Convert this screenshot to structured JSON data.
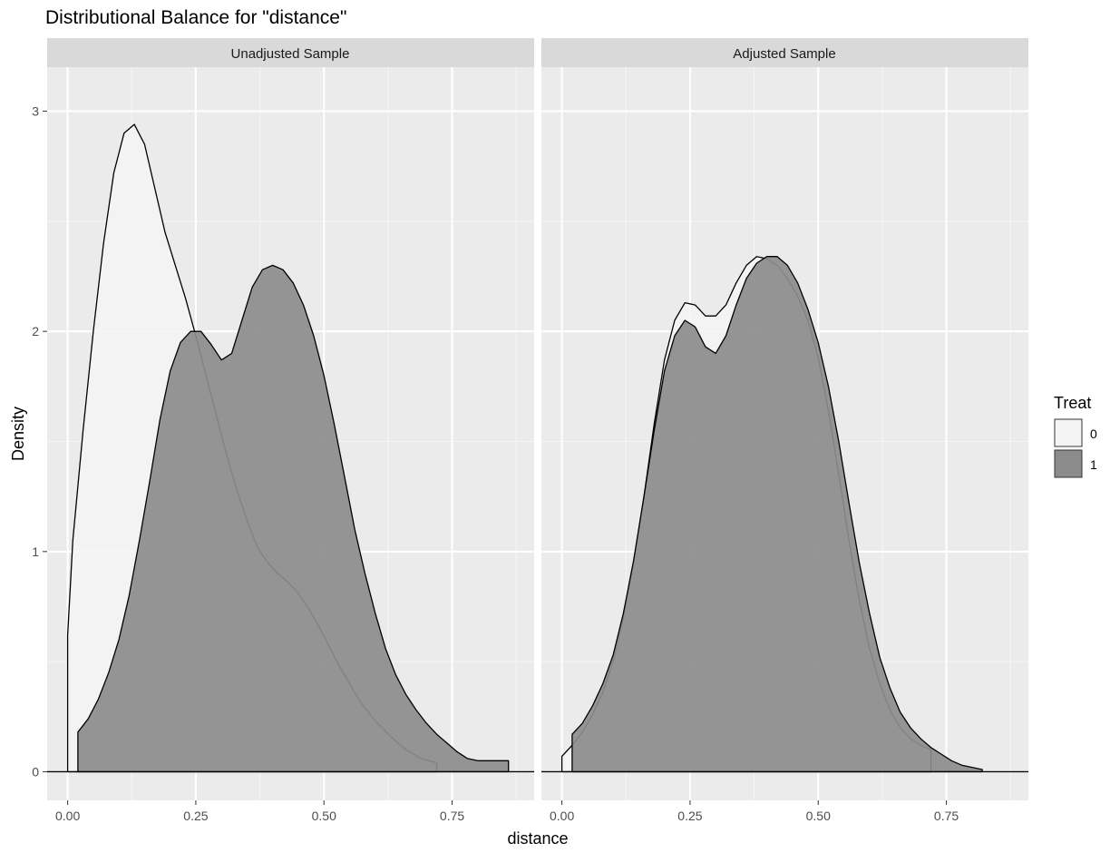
{
  "chart_data": {
    "type": "area",
    "title": "Distributional Balance for \"distance\"",
    "xlabel": "distance",
    "ylabel": "Density",
    "xlim": [
      -0.04,
      0.91
    ],
    "ylim": [
      -0.13,
      3.2
    ],
    "x_ticks": [
      0.0,
      0.25,
      0.5,
      0.75
    ],
    "x_tick_labels": [
      "0.00",
      "0.25",
      "0.50",
      "0.75"
    ],
    "y_ticks": [
      0,
      1,
      2,
      3
    ],
    "y_tick_labels": [
      "0",
      "1",
      "2",
      "3"
    ],
    "grid": true,
    "legend": {
      "title": "Treat",
      "placement": "right",
      "entries": [
        {
          "label": "0",
          "color": "#f4f4f4"
        },
        {
          "label": "1",
          "color": "#8c8c8c"
        }
      ]
    },
    "panels": [
      {
        "strip": "Unadjusted Sample",
        "series": [
          {
            "name": "0",
            "color": "#f4f4f4",
            "x": [
              0.0,
              0.01,
              0.03,
              0.05,
              0.07,
              0.09,
              0.11,
              0.13,
              0.15,
              0.17,
              0.19,
              0.21,
              0.23,
              0.25,
              0.27,
              0.29,
              0.31,
              0.33,
              0.35,
              0.37,
              0.39,
              0.41,
              0.43,
              0.45,
              0.47,
              0.49,
              0.51,
              0.53,
              0.55,
              0.57,
              0.6,
              0.63,
              0.66,
              0.69,
              0.72
            ],
            "y": [
              0.62,
              1.05,
              1.55,
              2.0,
              2.4,
              2.72,
              2.9,
              2.94,
              2.85,
              2.65,
              2.45,
              2.3,
              2.15,
              1.98,
              1.8,
              1.62,
              1.44,
              1.28,
              1.14,
              1.02,
              0.95,
              0.9,
              0.86,
              0.81,
              0.74,
              0.66,
              0.57,
              0.48,
              0.4,
              0.32,
              0.23,
              0.16,
              0.1,
              0.06,
              0.04
            ]
          },
          {
            "name": "1",
            "color": "#8c8c8c",
            "x": [
              0.02,
              0.04,
              0.06,
              0.08,
              0.1,
              0.12,
              0.14,
              0.16,
              0.18,
              0.2,
              0.22,
              0.24,
              0.26,
              0.28,
              0.3,
              0.32,
              0.34,
              0.36,
              0.38,
              0.4,
              0.42,
              0.44,
              0.46,
              0.48,
              0.5,
              0.52,
              0.54,
              0.56,
              0.58,
              0.6,
              0.62,
              0.64,
              0.66,
              0.68,
              0.7,
              0.72,
              0.74,
              0.76,
              0.78,
              0.8,
              0.82,
              0.84,
              0.86
            ],
            "y": [
              0.18,
              0.24,
              0.33,
              0.45,
              0.6,
              0.8,
              1.05,
              1.32,
              1.6,
              1.82,
              1.95,
              2.0,
              2.0,
              1.94,
              1.87,
              1.9,
              2.05,
              2.2,
              2.28,
              2.3,
              2.28,
              2.22,
              2.12,
              1.98,
              1.8,
              1.58,
              1.34,
              1.1,
              0.9,
              0.72,
              0.56,
              0.44,
              0.35,
              0.28,
              0.22,
              0.17,
              0.13,
              0.09,
              0.06,
              0.05,
              0.05,
              0.05,
              0.05
            ]
          }
        ]
      },
      {
        "strip": "Adjusted Sample",
        "series": [
          {
            "name": "0",
            "color": "#f4f4f4",
            "x": [
              0.0,
              0.02,
              0.04,
              0.06,
              0.08,
              0.1,
              0.12,
              0.14,
              0.16,
              0.18,
              0.2,
              0.22,
              0.24,
              0.26,
              0.28,
              0.3,
              0.32,
              0.34,
              0.36,
              0.38,
              0.4,
              0.42,
              0.44,
              0.46,
              0.48,
              0.5,
              0.52,
              0.54,
              0.56,
              0.58,
              0.6,
              0.62,
              0.64,
              0.66,
              0.68,
              0.7,
              0.72
            ],
            "y": [
              0.07,
              0.12,
              0.18,
              0.26,
              0.36,
              0.5,
              0.7,
              0.95,
              1.25,
              1.58,
              1.87,
              2.05,
              2.13,
              2.12,
              2.07,
              2.07,
              2.12,
              2.22,
              2.3,
              2.34,
              2.33,
              2.3,
              2.24,
              2.16,
              2.05,
              1.88,
              1.64,
              1.35,
              1.05,
              0.78,
              0.56,
              0.4,
              0.28,
              0.2,
              0.15,
              0.12,
              0.1
            ]
          },
          {
            "name": "1",
            "color": "#8c8c8c",
            "x": [
              0.02,
              0.04,
              0.06,
              0.08,
              0.1,
              0.12,
              0.14,
              0.16,
              0.18,
              0.2,
              0.22,
              0.24,
              0.26,
              0.28,
              0.3,
              0.32,
              0.34,
              0.36,
              0.38,
              0.4,
              0.42,
              0.44,
              0.46,
              0.48,
              0.5,
              0.52,
              0.54,
              0.56,
              0.58,
              0.6,
              0.62,
              0.64,
              0.66,
              0.68,
              0.7,
              0.72,
              0.74,
              0.76,
              0.78,
              0.8,
              0.82
            ],
            "y": [
              0.17,
              0.22,
              0.3,
              0.4,
              0.53,
              0.72,
              0.96,
              1.25,
              1.55,
              1.82,
              1.98,
              2.05,
              2.02,
              1.93,
              1.9,
              1.98,
              2.12,
              2.24,
              2.31,
              2.34,
              2.34,
              2.3,
              2.22,
              2.1,
              1.95,
              1.75,
              1.5,
              1.22,
              0.95,
              0.72,
              0.52,
              0.38,
              0.27,
              0.2,
              0.15,
              0.11,
              0.08,
              0.05,
              0.03,
              0.02,
              0.01
            ]
          }
        ]
      }
    ]
  }
}
